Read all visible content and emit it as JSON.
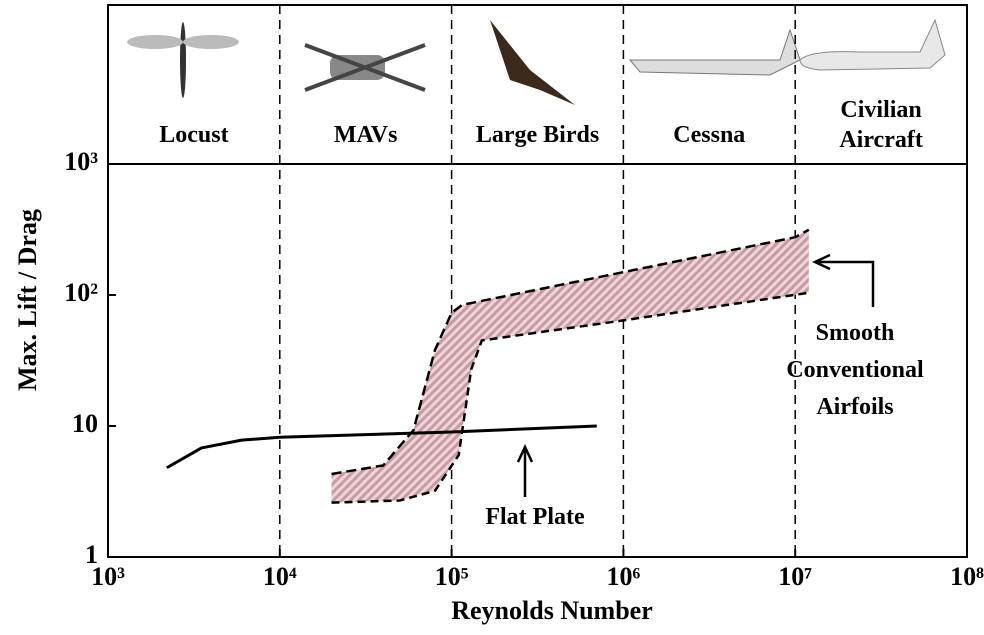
{
  "chart_data": {
    "type": "line",
    "xlabel": "Reynolds Number",
    "ylabel": "Max. Lift / Drag",
    "log_x": true,
    "log_y": true,
    "xlim": [
      1000,
      100000000
    ],
    "ylim": [
      1,
      1000
    ],
    "xticks": [
      {
        "value": 1000,
        "label": "10³"
      },
      {
        "value": 10000,
        "label": "10⁴"
      },
      {
        "value": 100000,
        "label": "10⁵"
      },
      {
        "value": 1000000,
        "label": "10⁶"
      },
      {
        "value": 10000000,
        "label": "10⁷"
      },
      {
        "value": 100000000,
        "label": "10⁸"
      }
    ],
    "yticks": [
      1,
      10,
      {
        "value": 100,
        "label": "10²"
      },
      {
        "value": 1000,
        "label": "10³"
      }
    ],
    "x_dividers": true,
    "regions": [
      "Locust",
      "MAVs",
      "Large  Birds",
      "Cessna",
      "Civilian Aircraft"
    ],
    "line": {
      "color": "#000000",
      "x": [
        2200,
        3500,
        6000,
        10000,
        100000,
        700000
      ],
      "values": [
        4.8,
        6.8,
        7.8,
        8.2,
        9,
        10
      ]
    },
    "band": {
      "color": "#dcb8bd",
      "upper": {
        "x": [
          20000,
          40000,
          60000,
          80000,
          100000,
          115000,
          10000000,
          12000000
        ],
        "values": [
          4.3,
          5,
          9.3,
          38,
          73,
          84,
          276,
          315
        ]
      },
      "lower": {
        "x": [
          20000,
          50000,
          80000,
          110000,
          130000,
          150000,
          1000000,
          12000000
        ],
        "values": [
          2.6,
          2.7,
          3.2,
          6,
          27,
          45,
          64,
          104
        ]
      }
    },
    "annotations": [
      "Flat Plate",
      "Smooth Conventional Airfoils"
    ]
  }
}
